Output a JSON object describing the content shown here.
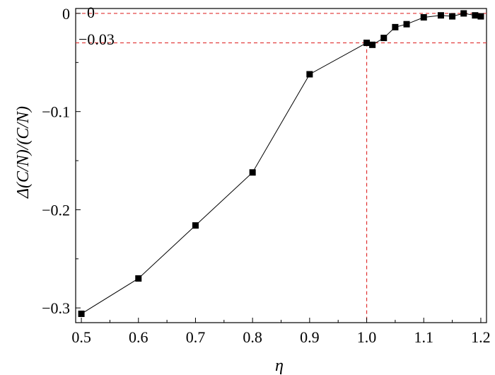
{
  "chart_data": {
    "type": "line",
    "x": [
      0.5,
      0.6,
      0.7,
      0.8,
      0.9,
      1.0,
      1.01,
      1.03,
      1.05,
      1.07,
      1.1,
      1.13,
      1.15,
      1.17,
      1.19,
      1.2
    ],
    "series": [
      {
        "values": [
          -0.306,
          -0.27,
          -0.216,
          -0.162,
          -0.062,
          -0.03,
          -0.032,
          -0.025,
          -0.014,
          -0.011,
          -0.004,
          -0.002,
          -0.003,
          0.0,
          -0.002,
          -0.003
        ]
      }
    ],
    "xlabel": "η",
    "ylabel": "Δ(C/N)/(C/N)",
    "xlim": [
      0.49,
      1.21
    ],
    "ylim": [
      -0.315,
      0.005
    ],
    "x_ticks": [
      {
        "value": 0.5,
        "label": "0.5"
      },
      {
        "value": 0.6,
        "label": "0.6"
      },
      {
        "value": 0.7,
        "label": "0.7"
      },
      {
        "value": 0.8,
        "label": "0.8"
      },
      {
        "value": 0.9,
        "label": "0.9"
      },
      {
        "value": 1.0,
        "label": "1.0"
      },
      {
        "value": 1.1,
        "label": "1.1"
      },
      {
        "value": 1.2,
        "label": "1.2"
      }
    ],
    "y_ticks": [
      {
        "value": 0,
        "label": "0"
      },
      {
        "value": -0.1,
        "label": "−0.1"
      },
      {
        "value": -0.2,
        "label": "−0.2"
      },
      {
        "value": -0.3,
        "label": "−0.3"
      }
    ],
    "reference_lines": [
      {
        "orientation": "horizontal",
        "value": 0,
        "label": "0"
      },
      {
        "orientation": "horizontal",
        "value": -0.03,
        "label": "−0.03"
      },
      {
        "orientation": "vertical",
        "value": 1.0
      }
    ],
    "grid": false,
    "colors": {
      "series": "#000000",
      "reference": "#e03030"
    }
  }
}
